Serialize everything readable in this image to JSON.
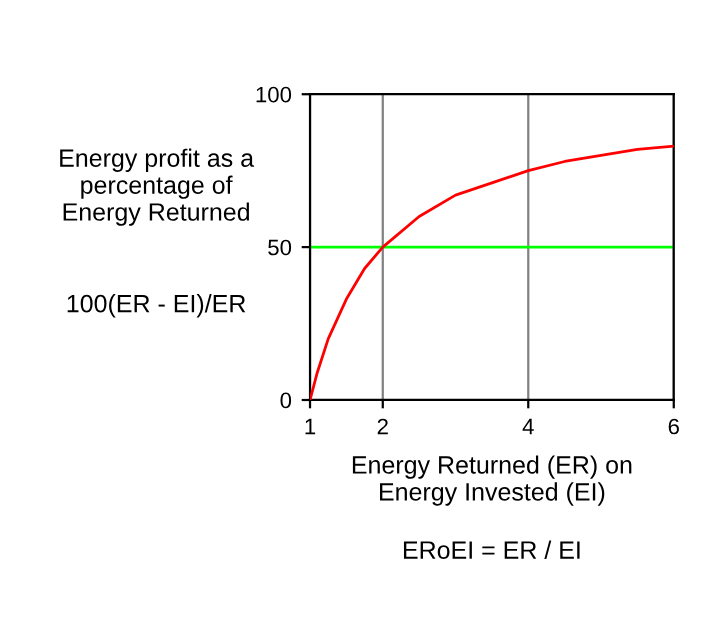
{
  "chart_data": {
    "type": "line",
    "ylabel": "Energy profit as a\npercentage of\nEnergy Returned",
    "xlabel": "Energy Returned (ER) on\nEnergy Invested (EI)",
    "annotations": [
      "100(ER - EI)/ER",
      "ERoEI = ER / EI"
    ],
    "x": [
      1,
      1.1,
      1.25,
      1.5,
      1.75,
      2,
      2.5,
      3,
      3.5,
      4,
      4.5,
      5,
      5.5,
      6
    ],
    "series": [
      {
        "color": "#ff0000",
        "values": [
          0,
          9,
          20,
          33,
          43,
          50,
          60,
          67,
          71,
          75,
          78,
          80,
          82,
          83
        ]
      }
    ],
    "xlim": [
      1,
      6
    ],
    "xticks": [
      1,
      2,
      4,
      6
    ],
    "ylim": [
      0,
      100
    ],
    "yticks": [
      0,
      50,
      100
    ],
    "grid": "x",
    "ref_lines": [
      {
        "axis": "y",
        "value": 50,
        "color": "#00ff00"
      }
    ]
  }
}
